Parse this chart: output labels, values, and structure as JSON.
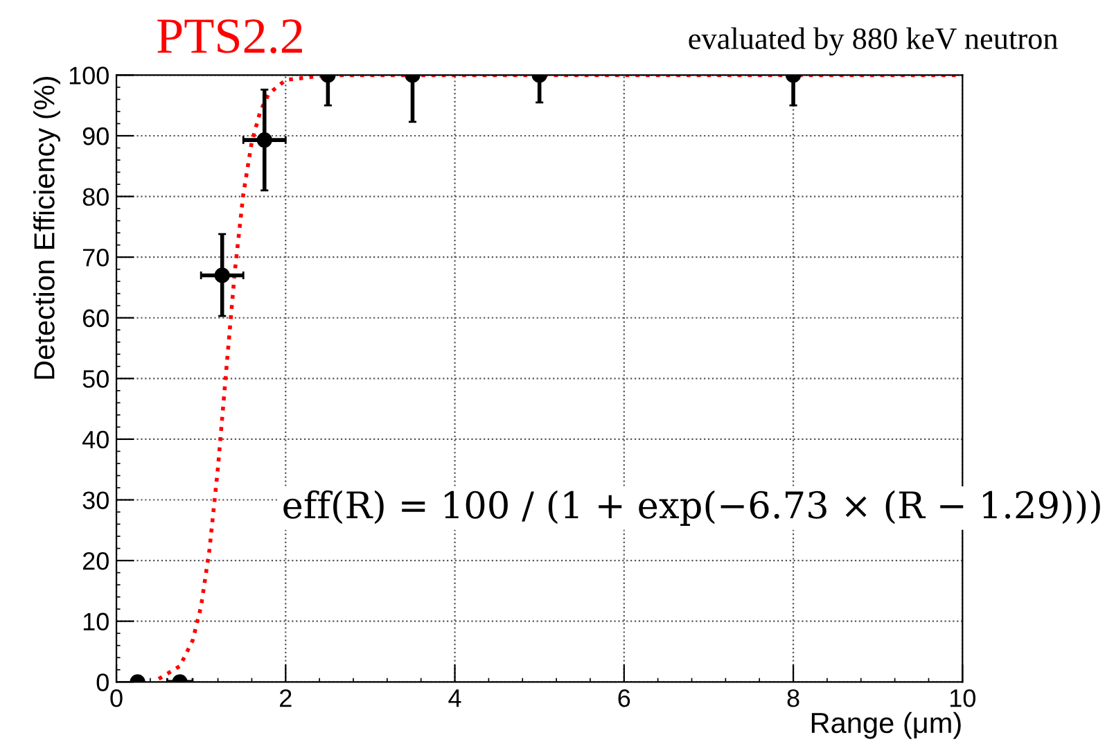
{
  "chart_data": {
    "type": "scatter",
    "title": "PTS2.2",
    "subtitle": "evaluated by 880 keV neutron",
    "xlabel": "Range (μm)",
    "ylabel": "Detection Efficiency (%)",
    "annotations": [
      "eff(R) = 100 / (1 + exp(−6.73 × (R − 1.29)))"
    ],
    "series": [
      {
        "color": "#000000",
        "x": [
          0.25,
          0.75,
          1.25,
          1.75,
          2.5,
          3.5,
          5,
          8
        ],
        "values": [
          0,
          0,
          67,
          89.3,
          100,
          100,
          100,
          100
        ],
        "errors": [
          null,
          null,
          [
            60.3,
            73.8
          ],
          [
            81,
            97.6
          ],
          [
            95,
            100
          ],
          [
            92.3,
            100
          ],
          [
            95.5,
            100
          ],
          [
            95,
            100
          ]
        ],
        "xerrors": [
          null,
          [
            0.6,
            0.9
          ],
          [
            1.0,
            1.5
          ],
          [
            1.5,
            2.0
          ],
          null,
          null,
          null,
          null
        ]
      },
      {
        "type": "line",
        "color": "#ff0000",
        "line_style": "dotted",
        "marker": "none",
        "x": [
          0.5,
          0.75,
          0.9,
          1.0,
          1.1,
          1.2,
          1.29,
          1.4,
          1.5,
          1.6,
          1.7,
          1.8,
          2.0,
          2.5,
          10
        ],
        "values": [
          0.5,
          2.6,
          6.8,
          12.4,
          21.8,
          35.3,
          50,
          67.7,
          80.4,
          89,
          94,
          96.9,
          99.2,
          100,
          100
        ]
      }
    ],
    "marker": "circle",
    "xlim": [
      0,
      10
    ],
    "ylim": [
      0,
      100
    ],
    "xticks": [
      0,
      2,
      4,
      6,
      8,
      10
    ],
    "yticks": [
      0,
      10,
      20,
      30,
      40,
      50,
      60,
      70,
      80,
      90,
      100
    ],
    "grid": true,
    "legend": false
  }
}
